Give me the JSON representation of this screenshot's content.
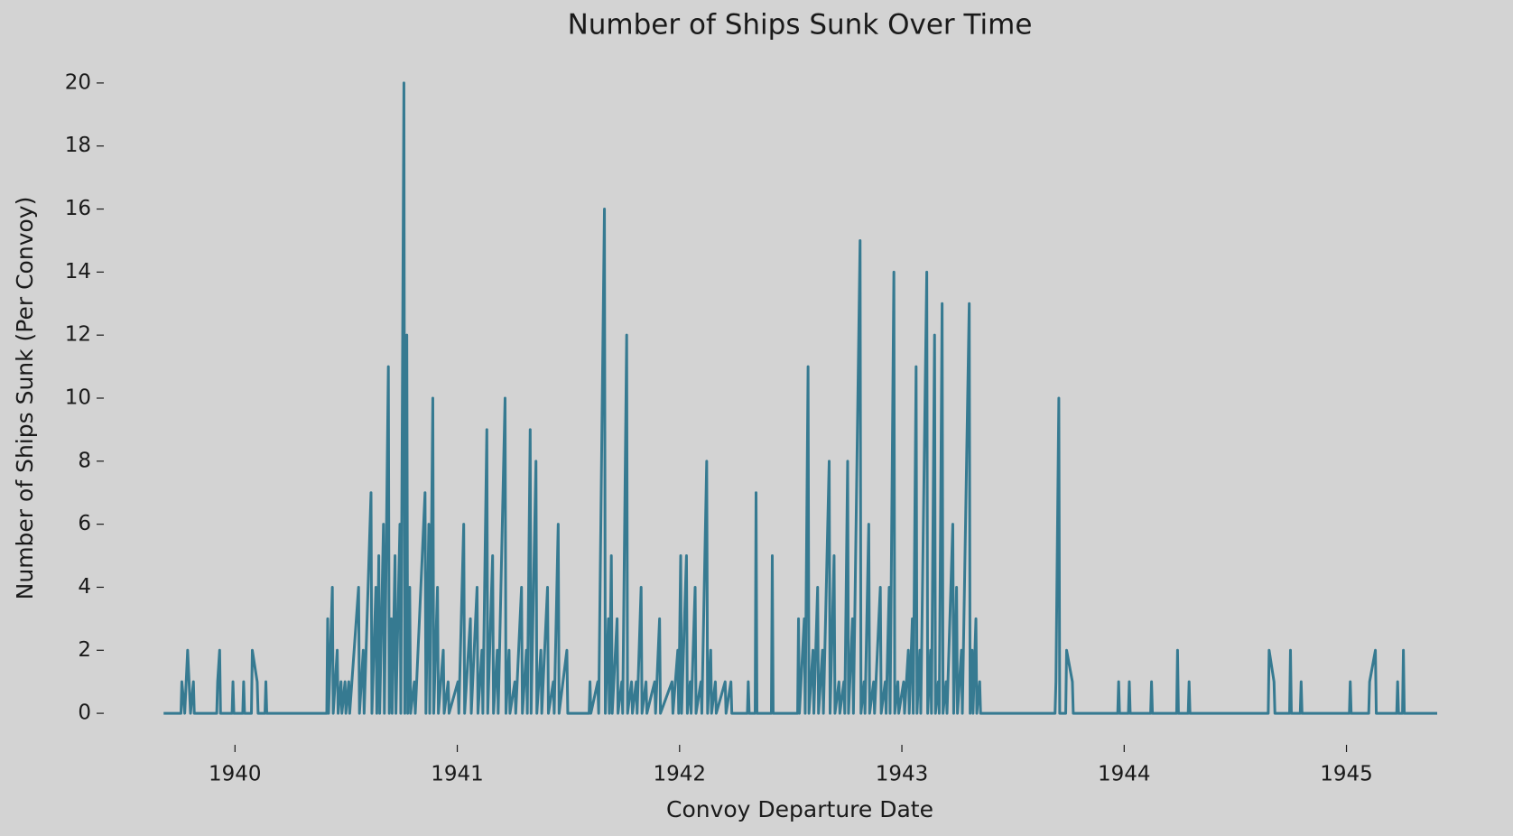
{
  "chart_data": {
    "type": "line",
    "title": "Number of Ships Sunk Over Time",
    "xlabel": "Convoy Departure Date",
    "ylabel": "Number of Ships Sunk (Per Convoy)",
    "color": "#367a91",
    "xlim": [
      1939.41,
      1945.68
    ],
    "ylim": [
      -1,
      21
    ],
    "xticks": [
      1940,
      1941,
      1942,
      1943,
      1944,
      1945
    ],
    "yticks": [
      0,
      2,
      4,
      6,
      8,
      10,
      12,
      14,
      16,
      18,
      20
    ],
    "grid": false,
    "x": [
      1939.679,
      1939.757,
      1939.761,
      1939.774,
      1939.787,
      1939.8,
      1939.813,
      1939.817,
      1939.918,
      1939.922,
      1939.931,
      1939.935,
      1939.987,
      1939.991,
      1939.995,
      1940.035,
      1940.039,
      1940.043,
      1940.074,
      1940.078,
      1940.1,
      1940.104,
      1940.135,
      1940.139,
      1940.143,
      1940.413,
      1940.417,
      1940.421,
      1940.438,
      1940.442,
      1940.46,
      1940.464,
      1940.477,
      1940.481,
      1940.495,
      1940.499,
      1940.512,
      1940.516,
      1940.556,
      1940.56,
      1940.577,
      1940.581,
      1940.612,
      1940.616,
      1940.634,
      1940.638,
      1940.647,
      1940.651,
      1940.668,
      1940.672,
      1940.69,
      1940.694,
      1940.703,
      1940.707,
      1940.72,
      1940.724,
      1940.742,
      1940.746,
      1940.76,
      1940.764,
      1940.773,
      1940.777,
      1940.786,
      1940.79,
      1940.807,
      1940.811,
      1940.855,
      1940.859,
      1940.872,
      1940.876,
      1940.89,
      1940.894,
      1940.911,
      1940.915,
      1940.937,
      1940.941,
      1940.959,
      1940.963,
      1941.003,
      1941.007,
      1941.029,
      1941.033,
      1941.059,
      1941.063,
      1941.089,
      1941.093,
      1941.111,
      1941.115,
      1941.133,
      1941.137,
      1941.159,
      1941.163,
      1941.18,
      1941.184,
      1941.215,
      1941.219,
      1941.233,
      1941.237,
      1941.259,
      1941.263,
      1941.289,
      1941.293,
      1941.311,
      1941.315,
      1941.328,
      1941.332,
      1941.354,
      1941.358,
      1941.376,
      1941.38,
      1941.406,
      1941.41,
      1941.432,
      1941.436,
      1941.454,
      1941.458,
      1941.493,
      1941.497,
      1941.593,
      1941.597,
      1941.601,
      1941.632,
      1941.636,
      1941.662,
      1941.666,
      1941.68,
      1941.684,
      1941.693,
      1941.697,
      1941.719,
      1941.723,
      1941.74,
      1941.744,
      1941.762,
      1941.766,
      1941.784,
      1941.788,
      1941.805,
      1941.809,
      1941.827,
      1941.831,
      1941.849,
      1941.853,
      1941.888,
      1941.892,
      1941.91,
      1941.914,
      1941.966,
      1941.97,
      1941.992,
      1941.996,
      1942.005,
      1942.009,
      1942.031,
      1942.035,
      1942.048,
      1942.052,
      1942.07,
      1942.074,
      1942.096,
      1942.1,
      1942.122,
      1942.126,
      1942.14,
      1942.144,
      1942.161,
      1942.165,
      1942.205,
      1942.209,
      1942.231,
      1942.235,
      1942.305,
      1942.309,
      1942.313,
      1942.34,
      1942.344,
      1942.348,
      1942.413,
      1942.417,
      1942.421,
      1942.531,
      1942.535,
      1942.539,
      1942.561,
      1942.565,
      1942.578,
      1942.582,
      1942.6,
      1942.604,
      1942.621,
      1942.625,
      1942.643,
      1942.647,
      1942.673,
      1942.677,
      1942.695,
      1942.699,
      1942.717,
      1942.721,
      1942.739,
      1942.743,
      1942.756,
      1942.76,
      1942.778,
      1942.782,
      1942.812,
      1942.816,
      1942.83,
      1942.834,
      1942.851,
      1942.855,
      1942.873,
      1942.877,
      1942.903,
      1942.907,
      1942.925,
      1942.929,
      1942.943,
      1942.947,
      1942.964,
      1942.968,
      1942.982,
      1942.986,
      1943.008,
      1943.012,
      1943.029,
      1943.033,
      1943.047,
      1943.051,
      1943.064,
      1943.068,
      1943.081,
      1943.085,
      1943.112,
      1943.116,
      1943.129,
      1943.133,
      1943.147,
      1943.151,
      1943.164,
      1943.168,
      1943.181,
      1943.185,
      1943.199,
      1943.203,
      1943.229,
      1943.233,
      1943.246,
      1943.25,
      1943.268,
      1943.272,
      1943.303,
      1943.307,
      1943.316,
      1943.32,
      1943.333,
      1943.337,
      1943.35,
      1943.354,
      1943.689,
      1943.693,
      1943.706,
      1943.71,
      1943.737,
      1943.741,
      1943.767,
      1943.771,
      1943.971,
      1943.975,
      1943.979,
      1944.019,
      1944.023,
      1944.027,
      1944.119,
      1944.123,
      1944.127,
      1944.236,
      1944.24,
      1944.244,
      1944.288,
      1944.292,
      1944.296,
      1944.648,
      1944.652,
      1944.674,
      1944.678,
      1944.744,
      1944.748,
      1944.752,
      1944.792,
      1944.796,
      1944.8,
      1945.013,
      1945.017,
      1945.021,
      1945.1,
      1945.104,
      1945.13,
      1945.134,
      1945.226,
      1945.23,
      1945.234,
      1945.252,
      1945.256,
      1945.26,
      1945.408
    ],
    "values": [
      0,
      0,
      1,
      0,
      2,
      0,
      1,
      0,
      0,
      1,
      2,
      0,
      0,
      1,
      0,
      0,
      1,
      0,
      0,
      2,
      1,
      0,
      0,
      1,
      0,
      0,
      3,
      0,
      4,
      0,
      2,
      0,
      1,
      0,
      1,
      0,
      1,
      0,
      4,
      0,
      2,
      0,
      7,
      0,
      4,
      0,
      5,
      0,
      6,
      0,
      11,
      0,
      3,
      0,
      5,
      0,
      6,
      0,
      20,
      0,
      12,
      0,
      4,
      0,
      1,
      0,
      7,
      0,
      6,
      0,
      10,
      0,
      4,
      0,
      2,
      0,
      1,
      0,
      1,
      0,
      6,
      0,
      3,
      0,
      4,
      0,
      2,
      0,
      9,
      0,
      5,
      0,
      2,
      0,
      10,
      0,
      2,
      0,
      1,
      0,
      4,
      0,
      2,
      0,
      9,
      0,
      8,
      0,
      2,
      0,
      4,
      0,
      1,
      0,
      6,
      0,
      2,
      0,
      0,
      1,
      0,
      1,
      0,
      16,
      0,
      3,
      0,
      5,
      0,
      3,
      0,
      1,
      0,
      12,
      0,
      1,
      0,
      1,
      0,
      4,
      0,
      1,
      0,
      1,
      0,
      3,
      0,
      1,
      0,
      2,
      0,
      5,
      0,
      5,
      0,
      1,
      0,
      4,
      0,
      1,
      0,
      8,
      0,
      2,
      0,
      1,
      0,
      1,
      0,
      1,
      0,
      0,
      1,
      0,
      0,
      7,
      0,
      0,
      5,
      0,
      0,
      3,
      0,
      3,
      0,
      11,
      0,
      2,
      0,
      4,
      0,
      2,
      0,
      8,
      0,
      5,
      0,
      1,
      0,
      1,
      0,
      8,
      0,
      3,
      0,
      15,
      0,
      1,
      0,
      6,
      0,
      1,
      0,
      4,
      0,
      1,
      0,
      4,
      0,
      14,
      0,
      1,
      0,
      1,
      0,
      2,
      0,
      3,
      0,
      11,
      0,
      2,
      0,
      14,
      0,
      2,
      0,
      12,
      0,
      1,
      0,
      13,
      0,
      1,
      0,
      6,
      0,
      4,
      0,
      2,
      0,
      13,
      0,
      2,
      0,
      3,
      0,
      1,
      0,
      0,
      1,
      10,
      0,
      0,
      2,
      1,
      0,
      0,
      1,
      0,
      0,
      1,
      0,
      0,
      1,
      0,
      0,
      2,
      0,
      0,
      1,
      0,
      0,
      2,
      1,
      0,
      0,
      2,
      0,
      0,
      1,
      0,
      0,
      1,
      0,
      0,
      1,
      2,
      0,
      0,
      1,
      0,
      0,
      2,
      0,
      0
    ]
  }
}
